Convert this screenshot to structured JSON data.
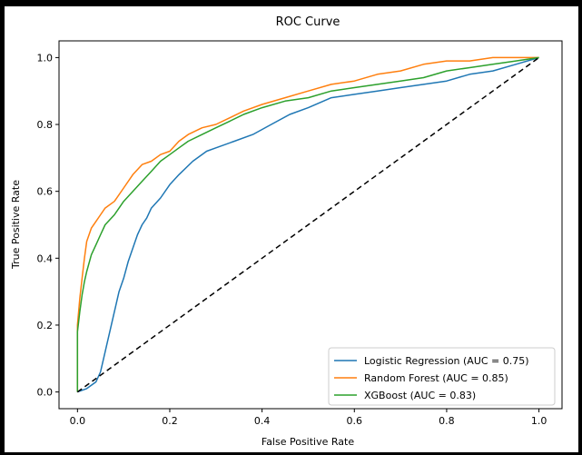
{
  "chart_data": {
    "type": "line",
    "title": "ROC Curve",
    "xlabel": "False Positive Rate",
    "ylabel": "True Positive Rate",
    "xlim": [
      -0.04,
      1.05
    ],
    "ylim": [
      -0.05,
      1.05
    ],
    "xticks": [
      0.0,
      0.2,
      0.4,
      0.6,
      0.8,
      1.0
    ],
    "yticks": [
      0.0,
      0.2,
      0.4,
      0.6,
      0.8,
      1.0
    ],
    "xtick_labels": [
      "0.0",
      "0.2",
      "0.4",
      "0.6",
      "0.8",
      "1.0"
    ],
    "ytick_labels": [
      "0.0",
      "0.2",
      "0.4",
      "0.6",
      "0.8",
      "1.0"
    ],
    "grid": false,
    "legend_position": "lower-right",
    "series": [
      {
        "name": "Logistic Regression (AUC = 0.75)",
        "color": "#1f77b4",
        "x": [
          0.0,
          0.02,
          0.04,
          0.05,
          0.06,
          0.07,
          0.08,
          0.09,
          0.1,
          0.11,
          0.12,
          0.13,
          0.14,
          0.15,
          0.16,
          0.18,
          0.2,
          0.22,
          0.25,
          0.28,
          0.3,
          0.34,
          0.38,
          0.42,
          0.46,
          0.5,
          0.55,
          0.6,
          0.65,
          0.7,
          0.75,
          0.8,
          0.85,
          0.9,
          0.95,
          1.0
        ],
        "y": [
          0.0,
          0.01,
          0.03,
          0.06,
          0.12,
          0.18,
          0.24,
          0.3,
          0.34,
          0.39,
          0.43,
          0.47,
          0.5,
          0.52,
          0.55,
          0.58,
          0.62,
          0.65,
          0.69,
          0.72,
          0.73,
          0.75,
          0.77,
          0.8,
          0.83,
          0.85,
          0.88,
          0.89,
          0.9,
          0.91,
          0.92,
          0.93,
          0.95,
          0.96,
          0.98,
          1.0
        ]
      },
      {
        "name": "Random Forest (AUC = 0.85)",
        "color": "#ff7f0e",
        "x": [
          0.0,
          0.0,
          0.005,
          0.01,
          0.015,
          0.02,
          0.03,
          0.04,
          0.05,
          0.06,
          0.08,
          0.1,
          0.12,
          0.14,
          0.16,
          0.18,
          0.2,
          0.22,
          0.24,
          0.27,
          0.3,
          0.33,
          0.36,
          0.4,
          0.45,
          0.5,
          0.55,
          0.6,
          0.65,
          0.7,
          0.75,
          0.8,
          0.85,
          0.9,
          0.95,
          1.0
        ],
        "y": [
          0.0,
          0.2,
          0.28,
          0.34,
          0.4,
          0.45,
          0.49,
          0.51,
          0.53,
          0.55,
          0.57,
          0.61,
          0.65,
          0.68,
          0.69,
          0.71,
          0.72,
          0.75,
          0.77,
          0.79,
          0.8,
          0.82,
          0.84,
          0.86,
          0.88,
          0.9,
          0.92,
          0.93,
          0.95,
          0.96,
          0.98,
          0.99,
          0.99,
          1.0,
          1.0,
          1.0
        ]
      },
      {
        "name": "XGBoost (AUC = 0.83)",
        "color": "#2ca02c",
        "x": [
          0.0,
          0.0,
          0.005,
          0.01,
          0.015,
          0.02,
          0.03,
          0.04,
          0.05,
          0.06,
          0.08,
          0.1,
          0.12,
          0.14,
          0.16,
          0.18,
          0.2,
          0.22,
          0.24,
          0.27,
          0.3,
          0.33,
          0.36,
          0.4,
          0.45,
          0.5,
          0.55,
          0.6,
          0.65,
          0.7,
          0.75,
          0.8,
          0.85,
          0.9,
          0.95,
          1.0
        ],
        "y": [
          0.0,
          0.18,
          0.24,
          0.29,
          0.33,
          0.36,
          0.41,
          0.44,
          0.47,
          0.5,
          0.53,
          0.57,
          0.6,
          0.63,
          0.66,
          0.69,
          0.71,
          0.73,
          0.75,
          0.77,
          0.79,
          0.81,
          0.83,
          0.85,
          0.87,
          0.88,
          0.9,
          0.91,
          0.92,
          0.93,
          0.94,
          0.96,
          0.97,
          0.98,
          0.99,
          1.0
        ]
      },
      {
        "name": "",
        "color": "#000000",
        "dashed": true,
        "x": [
          0.0,
          1.0
        ],
        "y": [
          0.0,
          1.0
        ]
      }
    ]
  }
}
